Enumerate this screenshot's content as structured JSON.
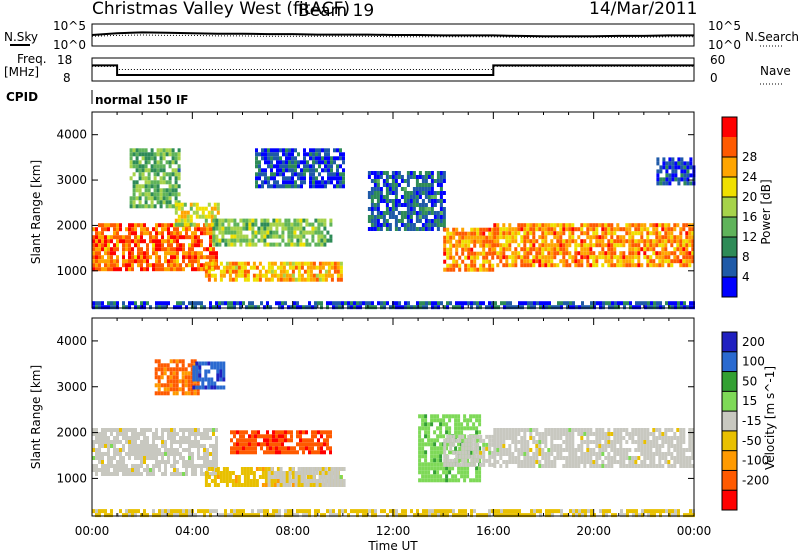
{
  "header": {
    "title": "Christmas Valley West (fitACF)",
    "beam": "Beam 19",
    "date": "14/Mar/2011"
  },
  "colors": {
    "power_scale": [
      "#0000ff",
      "#1f5aa8",
      "#2e8b57",
      "#5fb35a",
      "#a6d34a",
      "#f0e000",
      "#ffa500",
      "#ff5a00",
      "#ff0000"
    ],
    "velocity_scale": [
      "#2020c0",
      "#2a6ad0",
      "#33a033",
      "#7ed957",
      "#c8c8c0",
      "#e8c000",
      "#ff9a00",
      "#ff5a00",
      "#ff0000"
    ],
    "scatter_gray": "#c8c8c0"
  },
  "chart_data": [
    {
      "type": "line",
      "panel": "N.Sky / N.Search",
      "left_label": "N.Sky",
      "right_label": "N.Search",
      "left_ticks": [
        "10^5",
        "10^0"
      ],
      "right_ticks": [
        "10^5",
        "10^0"
      ],
      "x": [
        0,
        1,
        2,
        3,
        4,
        5,
        6,
        7,
        8,
        9,
        10,
        11,
        12,
        13,
        14,
        15,
        16,
        17,
        18,
        19,
        20,
        21,
        22,
        23,
        24
      ],
      "series": [
        {
          "values": [
            2.5,
            2.9,
            3.1,
            3.0,
            2.9,
            2.8,
            2.8,
            2.7,
            2.7,
            2.6,
            2.6,
            2.6,
            2.5,
            2.5,
            2.4,
            2.4,
            2.4,
            2.3,
            2.2,
            2.2,
            2.2,
            2.3,
            2.3,
            2.4,
            2.4
          ]
        },
        {
          "values": [
            2.2,
            2.4,
            2.5,
            2.4,
            2.4,
            2.3,
            2.3,
            2.2,
            2.2,
            2.2,
            2.2,
            2.2,
            2.1,
            2.1,
            2.1,
            2.1,
            2.1,
            2.0,
            2.0,
            2.0,
            2.0,
            2.0,
            2.0,
            2.1,
            2.1
          ]
        }
      ]
    },
    {
      "type": "line",
      "panel": "Freq / Nave",
      "left_label": "Freq.",
      "left_unit": "[MHz]",
      "right_label": "Nave",
      "left_ticks": [
        "18",
        "8"
      ],
      "right_ticks": [
        "60",
        "0"
      ],
      "freq": {
        "x": [
          0,
          1,
          1,
          16,
          16,
          24
        ],
        "values": [
          14.8,
          14.8,
          10.6,
          10.6,
          14.8,
          14.8
        ]
      },
      "nave": {
        "x": [
          0,
          1,
          1,
          16,
          16,
          24
        ],
        "values": [
          38,
          38,
          30,
          30,
          38,
          38
        ]
      }
    },
    {
      "type": "heatmap",
      "panel": "CPID",
      "label": "CPID",
      "text": "normal 150 IF"
    },
    {
      "type": "heatmap",
      "panel": "Power",
      "ylabel": "Slant Range [km]",
      "yticks": [
        "1000",
        "2000",
        "3000",
        "4000"
      ],
      "ylim": [
        180,
        4500
      ],
      "xlim": [
        0,
        24
      ],
      "colorbar": {
        "label": "Power [dB]",
        "ticks": [
          "4",
          "8",
          "12",
          "16",
          "20",
          "24",
          "28"
        ],
        "range": [
          0,
          32
        ]
      },
      "regions": [
        {
          "t": [
            0.0,
            5.0
          ],
          "r": [
            1050,
            2050
          ],
          "level": 26
        },
        {
          "t": [
            1.5,
            3.5
          ],
          "r": [
            2400,
            3700
          ],
          "level": 12
        },
        {
          "t": [
            3.3,
            5.0
          ],
          "r": [
            2000,
            2500
          ],
          "level": 18
        },
        {
          "t": [
            4.8,
            9.5
          ],
          "r": [
            1550,
            2150
          ],
          "level": 14
        },
        {
          "t": [
            4.5,
            10.0
          ],
          "r": [
            800,
            1200
          ],
          "level": 22
        },
        {
          "t": [
            6.5,
            10.0
          ],
          "r": [
            2900,
            3700
          ],
          "level": 5
        },
        {
          "t": [
            11.0,
            14.0
          ],
          "r": [
            1900,
            3200
          ],
          "level": 6
        },
        {
          "t": [
            14.0,
            16.0
          ],
          "r": [
            1050,
            1950
          ],
          "level": 24
        },
        {
          "t": [
            16.0,
            24.0
          ],
          "r": [
            1150,
            2050
          ],
          "level": 24
        },
        {
          "t": [
            22.5,
            24.0
          ],
          "r": [
            2900,
            3500
          ],
          "level": 4
        },
        {
          "t": [
            0.0,
            24.0
          ],
          "r": [
            180,
            330
          ],
          "level": 5
        }
      ]
    },
    {
      "type": "heatmap",
      "panel": "Velocity",
      "ylabel": "Slant Range [km]",
      "yticks": [
        "1000",
        "2000",
        "3000",
        "4000"
      ],
      "ylim": [
        180,
        4500
      ],
      "xlim": [
        0,
        24
      ],
      "xlabel": "Time UT",
      "xticks": [
        "00:00",
        "04:00",
        "08:00",
        "12:00",
        "16:00",
        "20:00",
        "00:00"
      ],
      "colorbar": {
        "label": "Velocity [m s^-1]",
        "ticks": [
          "200",
          "100",
          "50",
          "15",
          "-15",
          "-50",
          "-100",
          "-200"
        ],
        "range": [
          -250,
          250
        ]
      },
      "regions": [
        {
          "t": [
            0.0,
            5.0
          ],
          "r": [
            1100,
            2100
          ],
          "level": 0
        },
        {
          "t": [
            2.5,
            4.2
          ],
          "r": [
            2900,
            3600
          ],
          "level": -150
        },
        {
          "t": [
            4.0,
            5.2
          ],
          "r": [
            3000,
            3550
          ],
          "level": 180
        },
        {
          "t": [
            5.5,
            9.5
          ],
          "r": [
            1600,
            2050
          ],
          "level": -180
        },
        {
          "t": [
            4.5,
            10.0
          ],
          "r": [
            850,
            1250
          ],
          "level": -60
        },
        {
          "t": [
            7.0,
            10.0
          ],
          "r": [
            850,
            1250
          ],
          "level": 0
        },
        {
          "t": [
            13.0,
            15.5
          ],
          "r": [
            1000,
            2400
          ],
          "level": 60
        },
        {
          "t": [
            14.0,
            16.0
          ],
          "r": [
            1300,
            1950
          ],
          "level": 0
        },
        {
          "t": [
            16.0,
            24.0
          ],
          "r": [
            1300,
            2100
          ],
          "level": 0
        },
        {
          "t": [
            0.0,
            24.0
          ],
          "r": [
            180,
            330
          ],
          "level": -40
        }
      ]
    }
  ]
}
